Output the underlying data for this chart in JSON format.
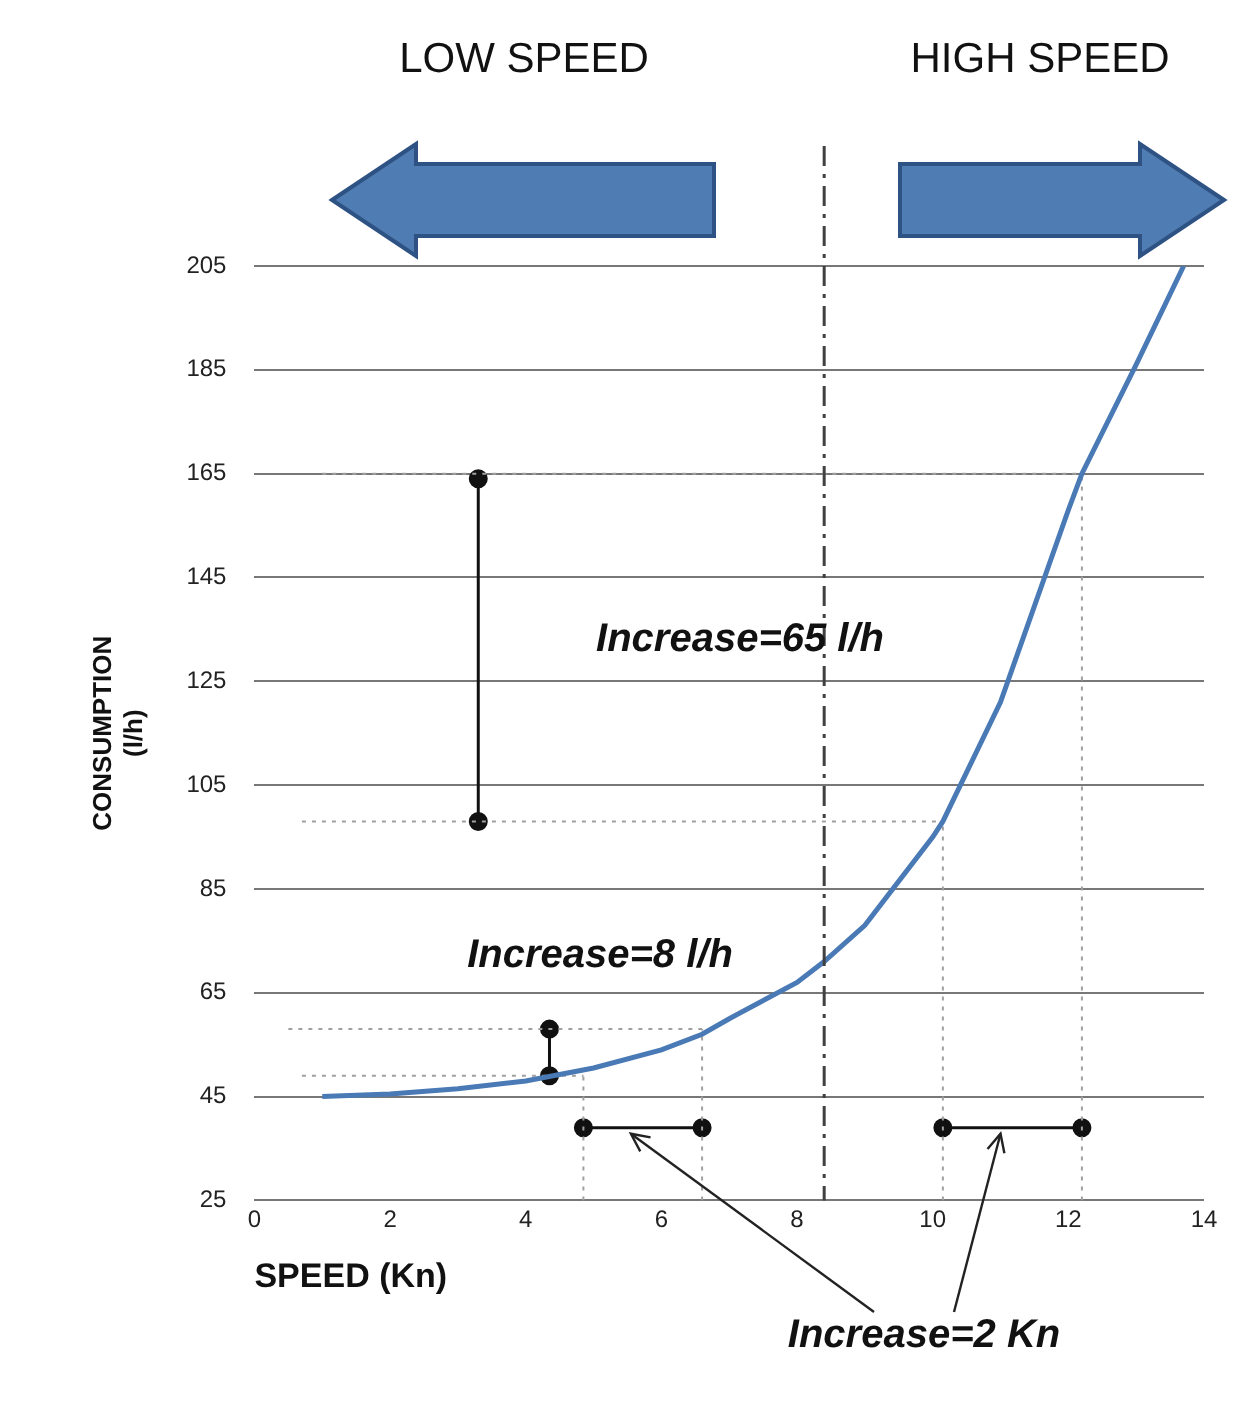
{
  "chart_data": {
    "type": "line",
    "xlabel": "SPEED (Kn)",
    "ylabel": "CONSUMPTION\n(l/h)",
    "xlim": [
      0,
      14
    ],
    "xticks": [
      0,
      2,
      4,
      6,
      8,
      10,
      12,
      14
    ],
    "ylim": [
      25,
      205
    ],
    "yticks": [
      25,
      45,
      65,
      85,
      105,
      125,
      145,
      165,
      185,
      205
    ],
    "grid": "y",
    "legend": false,
    "ref_lines": [
      {
        "axis": "x",
        "value": 8.4,
        "color": "#404040",
        "line_style": "dashed"
      }
    ],
    "annotations": [
      "LOW SPEED",
      "HIGH SPEED",
      "Increase=65 l/h",
      "Increase=8 l/h",
      {
        "text": "Increase=2 Kn",
        "x": 11,
        "y": 39
      }
    ],
    "series": [
      {
        "color": "#4a7ab5",
        "marker": "none",
        "line_style": "solid",
        "x": [
          1,
          2,
          3,
          4,
          5,
          6,
          6.6,
          7,
          8,
          8.4,
          9,
          10,
          10.15,
          11,
          12,
          12.2,
          13,
          13.7
        ],
        "values": [
          45,
          45.5,
          46.5,
          48,
          50.5,
          54,
          57,
          60,
          67,
          71,
          78,
          95,
          98,
          121,
          158,
          165,
          186,
          205
        ]
      },
      {
        "color": "#a0a0a0",
        "marker": "none",
        "line_style": "dotted",
        "x": [
          1,
          12.2
        ],
        "values": [
          165,
          165
        ]
      },
      {
        "color": "#a0a0a0",
        "marker": "none",
        "line_style": "dotted",
        "x": [
          0.7,
          10.15
        ],
        "values": [
          98,
          98
        ]
      },
      {
        "color": "#a0a0a0",
        "marker": "none",
        "line_style": "dotted",
        "x": [
          0.5,
          6.6
        ],
        "values": [
          58,
          58
        ]
      },
      {
        "color": "#a0a0a0",
        "marker": "none",
        "line_style": "dotted",
        "x": [
          0.7,
          4.85
        ],
        "values": [
          49,
          49
        ]
      },
      {
        "color": "#a0a0a0",
        "marker": "none",
        "line_style": "dotted",
        "x": [
          4.85,
          4.85
        ],
        "values": [
          25,
          49
        ]
      },
      {
        "color": "#a0a0a0",
        "marker": "none",
        "line_style": "dotted",
        "x": [
          6.6,
          6.6
        ],
        "values": [
          25,
          58
        ]
      },
      {
        "color": "#a0a0a0",
        "marker": "none",
        "line_style": "dotted",
        "x": [
          10.15,
          10.15
        ],
        "values": [
          25,
          98
        ]
      },
      {
        "color": "#a0a0a0",
        "marker": "none",
        "line_style": "dotted",
        "x": [
          12.2,
          12.2
        ],
        "values": [
          25,
          165
        ]
      },
      {
        "color": "#111111",
        "marker": "circle",
        "line_style": "solid",
        "x": [
          3.3,
          3.3
        ],
        "values": [
          98,
          164
        ]
      },
      {
        "color": "#111111",
        "marker": "circle",
        "line_style": "solid",
        "x": [
          4.35,
          4.35
        ],
        "values": [
          49,
          58
        ]
      },
      {
        "color": "#111111",
        "marker": "circle",
        "line_style": "solid",
        "x": [
          4.85,
          6.6
        ],
        "values": [
          39,
          39
        ]
      },
      {
        "color": "#111111",
        "marker": "circle",
        "line_style": "solid",
        "x": [
          10.15,
          12.2
        ],
        "values": [
          39,
          39
        ]
      }
    ]
  }
}
